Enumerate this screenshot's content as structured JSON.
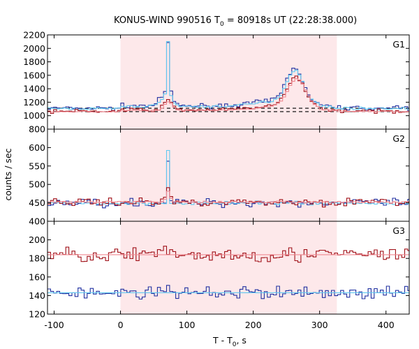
{
  "chart_data": {
    "type": "line",
    "title_main": "KONUS-WIND 990516 T",
    "title_sub": "0",
    "title_rest": " = 80918s UT (22:28:38.000)",
    "xlabel_main": "T - T",
    "xlabel_sub": "0",
    "xlabel_rest": ", s",
    "ylabel": "counts / sec",
    "xlim": [
      -110,
      435
    ],
    "xticks": [
      -100,
      0,
      100,
      200,
      300,
      400
    ],
    "highlight": {
      "x_start": 0,
      "x_end": 326,
      "color": "#fde8ea"
    },
    "colors": {
      "dark_blue": "#1f2fa0",
      "light_blue": "#5fc8f0",
      "dark_red": "#a01018",
      "pink": "#f08890",
      "black": "#000000"
    },
    "panels": [
      {
        "label": "G1",
        "ylim": [
          800,
          2200
        ],
        "yticks": [
          800,
          1000,
          1200,
          1400,
          1600,
          1800,
          2000,
          2200
        ],
        "background_levels": [
          1060,
          1110
        ],
        "series": [
          {
            "color": "dark_blue",
            "base": 1110,
            "noise": 22,
            "peaks": [
              {
                "t": 0,
                "a": 35,
                "w": 300,
                "kind": "box"
              },
              {
                "t": 72,
                "a": 800,
                "w": 2.2
              },
              {
                "t": 68,
                "a": 150,
                "w": 9
              },
              {
                "t": 262,
                "a": 480,
                "w": 12
              },
              {
                "t": 248,
                "a": 90,
                "w": 40
              }
            ]
          },
          {
            "color": "light_blue",
            "base": 1105,
            "noise": 12,
            "peaks": [
              {
                "t": 0,
                "a": 30,
                "w": 300,
                "kind": "box"
              },
              {
                "t": 72,
                "a": 840,
                "w": 2.0
              },
              {
                "t": 68,
                "a": 140,
                "w": 9
              },
              {
                "t": 263,
                "a": 460,
                "w": 12
              },
              {
                "t": 248,
                "a": 90,
                "w": 40
              }
            ]
          },
          {
            "color": "dark_red",
            "base": 1065,
            "noise": 18,
            "peaks": [
              {
                "t": 0,
                "a": 20,
                "w": 300,
                "kind": "box"
              },
              {
                "t": 72,
                "a": 150,
                "w": 6
              },
              {
                "t": 265,
                "a": 420,
                "w": 13
              },
              {
                "t": 250,
                "a": 70,
                "w": 40
              }
            ]
          },
          {
            "color": "pink",
            "base": 1060,
            "noise": 6,
            "peaks": [
              {
                "t": 0,
                "a": 15,
                "w": 300,
                "kind": "box"
              },
              {
                "t": 72,
                "a": 130,
                "w": 6
              },
              {
                "t": 266,
                "a": 410,
                "w": 13
              },
              {
                "t": 250,
                "a": 70,
                "w": 40
              }
            ]
          }
        ]
      },
      {
        "label": "G2",
        "ylim": [
          400,
          650
        ],
        "yticks": [
          400,
          450,
          500,
          550,
          600
        ],
        "series": [
          {
            "color": "dark_blue",
            "base": 450,
            "noise": 8,
            "peaks": [
              {
                "t": 72,
                "a": 120,
                "w": 1.6
              }
            ]
          },
          {
            "color": "light_blue",
            "base": 449,
            "noise": 3,
            "peaks": [
              {
                "t": 72,
                "a": 148,
                "w": 1.5
              }
            ]
          },
          {
            "color": "dark_red",
            "base": 452,
            "noise": 7,
            "peaks": [
              {
                "t": 72,
                "a": 40,
                "w": 3
              }
            ]
          },
          {
            "color": "pink",
            "base": 452,
            "noise": 2,
            "peaks": [
              {
                "t": 72,
                "a": 30,
                "w": 3
              }
            ]
          }
        ]
      },
      {
        "label": "G3",
        "ylim": [
          120,
          220
        ],
        "yticks": [
          120,
          140,
          160,
          180,
          200
        ],
        "series": [
          {
            "color": "dark_red",
            "base": 184,
            "noise": 6,
            "peaks": []
          },
          {
            "color": "pink",
            "base": 184,
            "noise": 0,
            "peaks": []
          },
          {
            "color": "dark_blue",
            "base": 143,
            "noise": 5,
            "peaks": []
          },
          {
            "color": "light_blue",
            "base": 143,
            "noise": 0,
            "peaks": []
          }
        ]
      }
    ]
  }
}
